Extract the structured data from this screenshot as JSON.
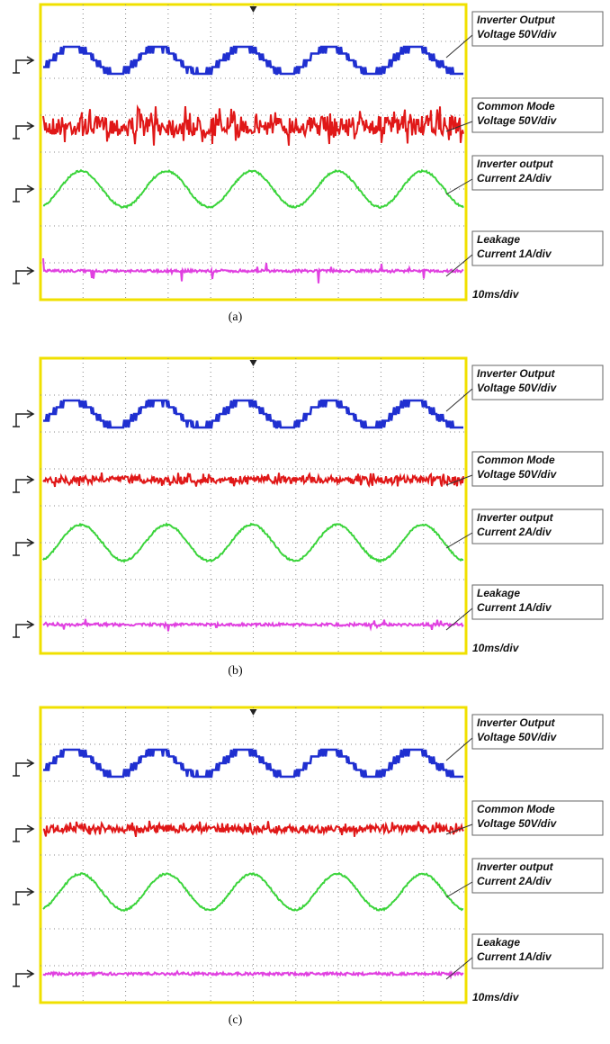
{
  "panels": [
    {
      "caption": "(a)",
      "timebase": "10ms/div",
      "traces": [
        {
          "label": [
            "Inverter Output",
            "Voltage 50V/div"
          ]
        },
        {
          "label": [
            "Common Mode",
            "Voltage 50V/div"
          ]
        },
        {
          "label": [
            "Inverter output",
            "Current 2A/div"
          ]
        },
        {
          "label": [
            "Leakage",
            "Current 1A/div"
          ]
        }
      ]
    },
    {
      "caption": "(b)",
      "timebase": "10ms/div",
      "traces": [
        {
          "label": [
            "Inverter Output",
            "Voltage 50V/div"
          ]
        },
        {
          "label": [
            "Common Mode",
            "Voltage 50V/div"
          ]
        },
        {
          "label": [
            "Inverter output",
            "Current 2A/div"
          ]
        },
        {
          "label": [
            "Leakage",
            "Current 1A/div"
          ]
        }
      ]
    },
    {
      "caption": "(c)",
      "timebase": "10ms/div",
      "traces": [
        {
          "label": [
            "Inverter Output",
            "Voltage 50V/div"
          ]
        },
        {
          "label": [
            "Common Mode",
            "Voltage 50V/div"
          ]
        },
        {
          "label": [
            "Inverter output",
            "Current 2A/div"
          ]
        },
        {
          "label": [
            "Leakage",
            "Current 1A/div"
          ]
        }
      ]
    }
  ]
}
